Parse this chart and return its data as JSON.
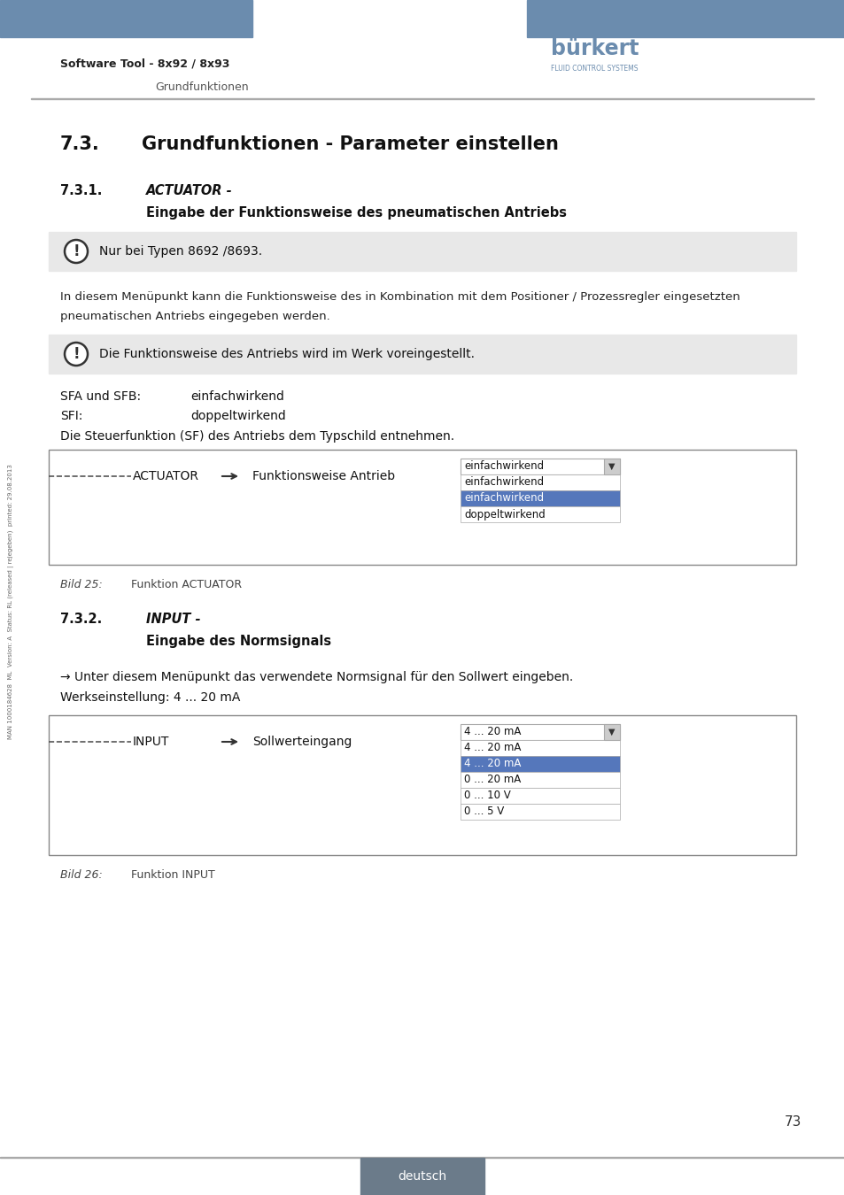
{
  "header_blue": "#6b8cae",
  "header_text_left": "Software Tool - 8x92 / 8x93",
  "header_subtext_left": "Grundfunktionen",
  "burkert_color": "#6b8cae",
  "title_731_text": "Grundfunktionen - Parameter einstellen",
  "title_7311_italic": "ACTUATOR -",
  "title_7311_bold": "Eingabe der Funktionsweise des pneumatischen Antriebs",
  "note1_text": "Nur bei Typen 8692 /8693.",
  "body1_line1": "In diesem Menüpunkt kann die Funktionsweise des in Kombination mit dem Positioner / Prozessregler eingesetzten",
  "body1_line2": "pneumatischen Antriebs eingegeben werden.",
  "note2_text": "Die Funktionsweise des Antriebs wird im Werk voreingestellt.",
  "sfa_label": "SFA und SFB:",
  "sfa_val": "einfachwirkend",
  "sfi_label": "SFI:",
  "sfi_val": "doppeltwirkend",
  "die_text": "Die Steuerfunktion (SF) des Antriebs dem Typschild entnehmen.",
  "fig1_label": "ACTUATOR",
  "fig1_dropdown_title": "Funktionsweise Antrieb",
  "fig1_dropdown_header": "einfachwirkend",
  "fig1_dropdown_items": [
    "einfachwirkend",
    "einfachwirkend",
    "doppeltwirkend"
  ],
  "fig1_selected": 1,
  "fig1_caption_num": "Bild 25:",
  "fig1_caption_text": "Funktion ACTUATOR",
  "title_7312_italic": "INPUT -",
  "title_7312_bold": "Eingabe des Normsignals",
  "arrow_text": "→ Unter diesem Menüpunkt das verwendete Normsignal für den Sollwert eingeben.",
  "werks_text": "Werkseinstellung: 4 ... 20 mA",
  "fig2_label": "INPUT",
  "fig2_dropdown_title": "Sollwerteingang",
  "fig2_dropdown_header": "4 ... 20 mA",
  "fig2_dropdown_items": [
    "4 ... 20 mA",
    "4 ... 20 mA",
    "0 ... 20 mA",
    "0 ... 10 V",
    "0 ... 5 V"
  ],
  "fig2_selected": 1,
  "fig2_caption_num": "Bild 26:",
  "fig2_caption_text": "Funktion INPUT",
  "page_number": "73",
  "footer_text": "deutsch",
  "footer_bg": "#6b7b8a",
  "bg_color": "#ffffff",
  "note_bg": "#e8e8e8",
  "box_border": "#999999",
  "dropdown_selected_bg": "#5577bb",
  "dropdown_border": "#aaaaaa",
  "side_text": "MAN 1000184628  ML  Version: A  Status: RL (released | rejegeben)  printed: 29.08.2013"
}
